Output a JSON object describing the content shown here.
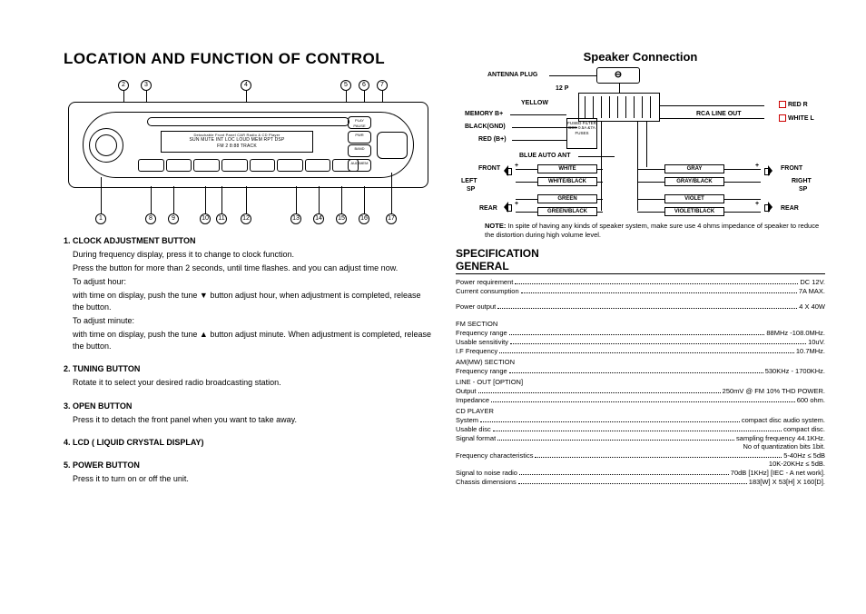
{
  "left": {
    "title": "LOCATION AND FUNCTION OF CONTROL",
    "callouts_top": [
      "2",
      "3",
      "4",
      "5",
      "6",
      "7"
    ],
    "callouts_bottom": [
      "1",
      "8",
      "9",
      "10",
      "11",
      "12",
      "13",
      "14",
      "15",
      "16",
      "17"
    ],
    "lcd_line1": "Detachable Front Panel CAR Radio & CD Player",
    "lcd_line2": "SUN MUTE INT LOC LOUD MEM RPT DSP",
    "lcd_line3": "FM 2  8:88  TRACK",
    "pill_pwr": "PWR",
    "pill_play": "PLAY PAUSE",
    "pill_band": "BAND",
    "pill_aud": "AUD/MEM",
    "instructions": [
      {
        "head": "1. CLOCK ADJUSTMENT BUTTON",
        "body": [
          "During frequency display, press it to change to clock function.",
          "Press the button for more than 2 seconds, until time flashes. and you can adjust time now.",
          "To adjust hour:",
          "with time on display, push the tune ▼ button adjust hour, when adjustment is completed, release the button.",
          "To adjust minute:",
          "with time on display, push the tune ▲ button adjust minute. When adjustment is completed, release the button."
        ]
      },
      {
        "head": "2. TUNING BUTTON",
        "body": [
          "Rotate it to select your desired radio broadcasting station."
        ]
      },
      {
        "head": "3. OPEN BUTTON",
        "body": [
          "Press it to detach the front panel when you want to take away."
        ]
      },
      {
        "head": "4. LCD ( LIQUID CRYSTAL DISPLAY)",
        "body": []
      },
      {
        "head": "5. POWER BUTTON",
        "body": [
          "Press it to turn on or off the unit."
        ]
      }
    ]
  },
  "right": {
    "title": "Speaker Connection",
    "labels": {
      "antenna": "ANTENNA PLUG",
      "twelvep": "12 P",
      "yellow": "YELLOW",
      "memoryb": "MEMORY B+",
      "blackgnd": "BLACK(GND)",
      "redb": "RED (B+)",
      "blueant": "BLUE  AUTO ANT",
      "filter": "FUSED FILTER BOX 0.5A &7A FUSES",
      "rcaline": "RCA LINE OUT",
      "redr": "RED R",
      "whitel": "WHITE  L",
      "front": "FRONT",
      "leftsp1": "LEFT",
      "leftsp2": "SP",
      "rear": "REAR",
      "rightsp1": "RIGHT",
      "rightsp2": "SP",
      "white": "WHITE",
      "whiteblack": "WHITE/BLACK",
      "green": "GREEN",
      "greenblack": "GREEN/BLACK",
      "gray": "GRAY",
      "grayblack": "GRAY/BLACK",
      "violet": "VIOLET",
      "violetblack": "VIOLET/BLACK",
      "plus": "+",
      "minus": "−"
    },
    "note_head": "NOTE:",
    "note_body": "In spite of having any kinds of speaker system, make sure use 4 ohms impedance of speaker to reduce the distortion during high volume level.",
    "spec_title1": "SPECIFICATION",
    "spec_title2": "GENERAL",
    "specs": [
      {
        "k": "Power requirement",
        "v": "DC 12V."
      },
      {
        "k": "Current consumption",
        "v": "7A MAX."
      },
      {
        "k": "",
        "v": ""
      },
      {
        "k": "Power output",
        "v": "4 X 40W"
      },
      {
        "k": "",
        "v": ""
      },
      {
        "sect": "FM SECTION"
      },
      {
        "k": "Frequency range",
        "v": "88MHz -108.0MHz."
      },
      {
        "k": "Usable sensitivity",
        "v": "10uV."
      },
      {
        "k": "I.F Frequency",
        "v": "10.7MHz."
      },
      {
        "sect": "AM(MW) SECTION"
      },
      {
        "k": "Frequency range",
        "v": "530KHz - 1700KHz."
      },
      {
        "sect": "LINE - OUT [OPTION]"
      },
      {
        "k": "Output",
        "v": "250mV @ FM 10% THD POWER."
      },
      {
        "k": "Impedance",
        "v": "600 ohm."
      },
      {
        "sect": "CD PLAYER"
      },
      {
        "k": "System",
        "v": "compact disc audio system."
      },
      {
        "k": "Usable disc",
        "v": "compact disc."
      },
      {
        "k": "Signal format",
        "v": "sampling frequency 44.1KHz."
      },
      {
        "sub": "No of quantization bits 1bit."
      },
      {
        "k": "Frequency characteristics",
        "v": "5-40Hz ≤ 5dB"
      },
      {
        "sub": "10K-20KHz ≤ 5dB."
      },
      {
        "k": "Signal to noise radio",
        "v": "70dB [1KHz] [IEC - A net work]."
      },
      {
        "k": "Chassis dimensions",
        "v": "183[W] X 53[H] X 160[D]."
      }
    ]
  }
}
